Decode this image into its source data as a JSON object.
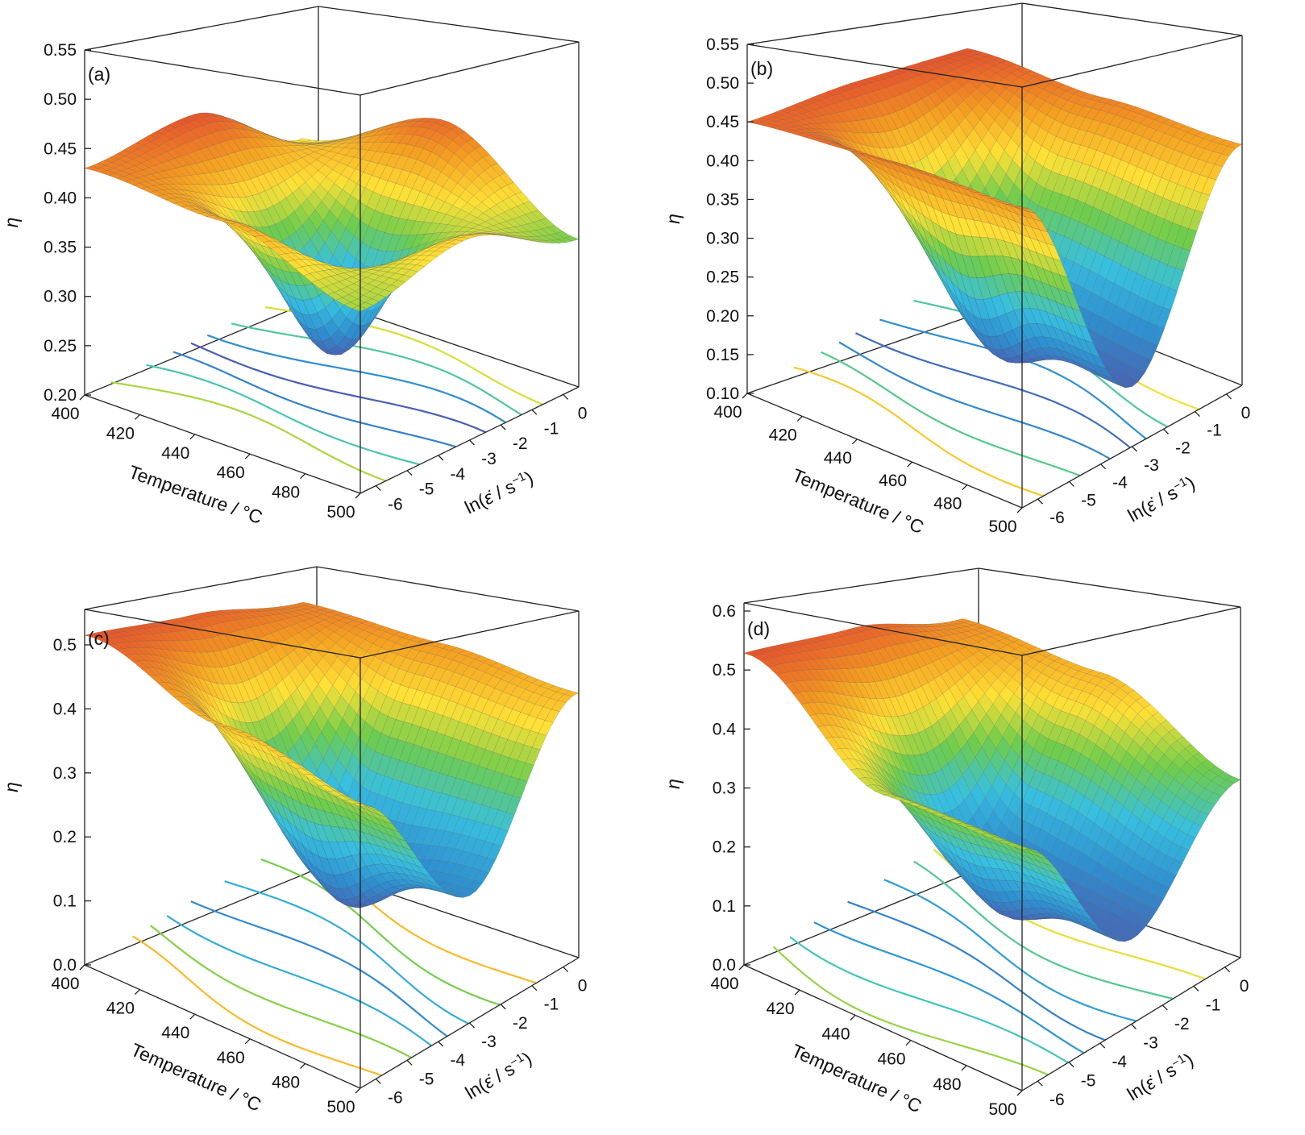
{
  "chart_data": [
    {
      "panel": "(a)",
      "type": "surface",
      "xlabel": "Temperature / °C",
      "ylabel_prefix": "ln(",
      "ylabel_symbol": "ε̇",
      "ylabel_suffix": " / s",
      "ylabel_exp": "−1",
      "ylabel_close": ")",
      "zlabel": "η",
      "x_ticks": [
        "400",
        "420",
        "440",
        "460",
        "480",
        "500"
      ],
      "y_ticks": [
        "-6",
        "-5",
        "-4",
        "-3",
        "-2",
        "-1",
        "0"
      ],
      "z_ticks": [
        "0.20",
        "0.25",
        "0.30",
        "0.35",
        "0.40",
        "0.45",
        "0.50",
        "0.55"
      ],
      "xlim": [
        400,
        500
      ],
      "ylim": [
        -7,
        0.5
      ],
      "zlim": [
        0.2,
        0.55
      ],
      "grid": false,
      "surface_points": {
        "temperature": [
          400,
          450,
          500
        ],
        "ln_strain_rate": [
          -7,
          -3.2,
          0.5
        ],
        "eta": [
          [
            0.43,
            0.45,
            0.38
          ],
          [
            0.41,
            0.3,
            0.44
          ],
          [
            0.36,
            0.39,
            0.35
          ]
        ]
      },
      "colormap": [
        "#4a5fb0",
        "#2f8fd0",
        "#37c0e0",
        "#6ecd4c",
        "#ffe135",
        "#f5a020",
        "#e8572a"
      ]
    },
    {
      "panel": "(b)",
      "type": "surface",
      "xlabel": "Temperature / °C",
      "ylabel_prefix": "ln(",
      "ylabel_symbol": "ε̇",
      "ylabel_suffix": " / s",
      "ylabel_exp": "−1",
      "ylabel_close": ")",
      "zlabel": "η",
      "x_ticks": [
        "400",
        "420",
        "440",
        "460",
        "480",
        "500"
      ],
      "y_ticks": [
        "-6",
        "-5",
        "-4",
        "-3",
        "-2",
        "-1",
        "0"
      ],
      "z_ticks": [
        "0.10",
        "0.15",
        "0.20",
        "0.25",
        "0.30",
        "0.35",
        "0.40",
        "0.45",
        "0.50",
        "0.55"
      ],
      "xlim": [
        400,
        500
      ],
      "ylim": [
        -7,
        0.5
      ],
      "zlim": [
        0.1,
        0.55
      ],
      "grid": false,
      "surface_points": {
        "temperature": [
          400,
          450,
          500
        ],
        "ln_strain_rate": [
          -7,
          -3.2,
          0.5
        ],
        "eta": [
          [
            0.45,
            0.46,
            0.46
          ],
          [
            0.44,
            0.2,
            0.43
          ],
          [
            0.42,
            0.17,
            0.41
          ]
        ]
      },
      "colormap": [
        "#4a5fb0",
        "#2f8fd0",
        "#37c0e0",
        "#6ecd4c",
        "#ffe135",
        "#f5a020",
        "#e8572a"
      ]
    },
    {
      "panel": "(c)",
      "type": "surface",
      "xlabel": "Temperature / °C",
      "ylabel_prefix": "ln(",
      "ylabel_symbol": "ε̇",
      "ylabel_suffix": " / s",
      "ylabel_exp": "−1",
      "ylabel_close": ")",
      "zlabel": "η",
      "x_ticks": [
        "400",
        "420",
        "440",
        "460",
        "480",
        "500"
      ],
      "y_ticks": [
        "-6",
        "-5",
        "-4",
        "-3",
        "-2",
        "-1",
        "0"
      ],
      "z_ticks": [
        "0.0",
        "0.1",
        "0.2",
        "0.3",
        "0.4",
        "0.5"
      ],
      "xlim": [
        400,
        500
      ],
      "ylim": [
        -7,
        0.5
      ],
      "zlim": [
        0.0,
        0.55
      ],
      "grid": false,
      "surface_points": {
        "temperature": [
          400,
          450,
          500
        ],
        "ln_strain_rate": [
          -7,
          -3.2,
          0.5
        ],
        "eta": [
          [
            0.51,
            0.5,
            0.47
          ],
          [
            0.42,
            0.16,
            0.45
          ],
          [
            0.36,
            0.18,
            0.42
          ]
        ]
      },
      "colormap": [
        "#4a5fb0",
        "#2f8fd0",
        "#37c0e0",
        "#6ecd4c",
        "#ffe135",
        "#f5a020",
        "#e8572a"
      ]
    },
    {
      "panel": "(d)",
      "type": "surface",
      "xlabel": "Temperature / °C",
      "ylabel_prefix": "ln(",
      "ylabel_symbol": "ε̇",
      "ylabel_suffix": " / s",
      "ylabel_exp": "−1",
      "ylabel_close": ")",
      "zlabel": "η",
      "x_ticks": [
        "400",
        "420",
        "440",
        "460",
        "480",
        "500"
      ],
      "y_ticks": [
        "-6",
        "-5",
        "-4",
        "-3",
        "-2",
        "-1",
        "0"
      ],
      "z_ticks": [
        "0.0",
        "0.1",
        "0.2",
        "0.3",
        "0.4",
        "0.5",
        "0.6"
      ],
      "xlim": [
        400,
        500
      ],
      "ylim": [
        -7,
        0.5
      ],
      "zlim": [
        0.0,
        0.65
      ],
      "grid": false,
      "surface_points": {
        "temperature": [
          400,
          450,
          500
        ],
        "ln_strain_rate": [
          -7,
          -3.2,
          0.5
        ],
        "eta": [
          [
            0.56,
            0.55,
            0.5
          ],
          [
            0.38,
            0.17,
            0.46
          ],
          [
            0.36,
            0.14,
            0.33
          ]
        ]
      },
      "colormap": [
        "#4a5fb0",
        "#2f8fd0",
        "#37c0e0",
        "#6ecd4c",
        "#ffe135",
        "#f5a020",
        "#e8572a"
      ]
    }
  ]
}
